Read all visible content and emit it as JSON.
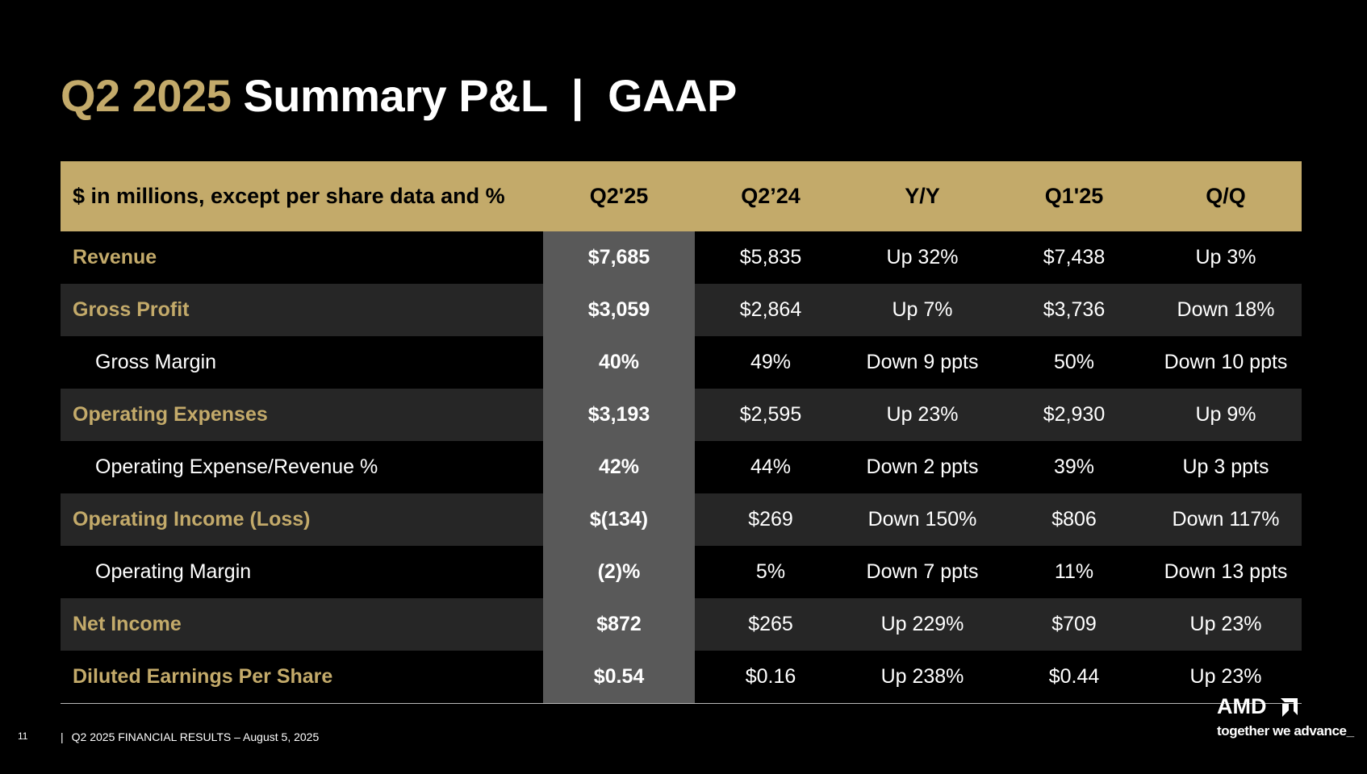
{
  "title": {
    "accent": "Q2 2025",
    "main": "Summary P&L  |  GAAP"
  },
  "colors": {
    "accent_gold": "#c3aa6a",
    "background": "#000000",
    "row_shade": "#262626",
    "current_column": "#595959"
  },
  "table": {
    "headers": [
      "$ in millions, except per share data and %",
      "Q2'25",
      "Q2’24",
      "Y/Y",
      "Q1'25",
      "Q/Q"
    ],
    "rows": [
      {
        "label": "Revenue",
        "style": "primary",
        "values": [
          "$7,685",
          "$5,835",
          "Up 32%",
          "$7,438",
          "Up 3%"
        ]
      },
      {
        "label": "Gross Profit",
        "style": "primary",
        "values": [
          "$3,059",
          "$2,864",
          "Up 7%",
          "$3,736",
          "Down 18%"
        ]
      },
      {
        "label": "Gross Margin",
        "style": "sub",
        "values": [
          "40%",
          "49%",
          "Down 9 ppts",
          "50%",
          "Down 10 ppts"
        ]
      },
      {
        "label": "Operating Expenses",
        "style": "primary",
        "values": [
          "$3,193",
          "$2,595",
          "Up 23%",
          "$2,930",
          "Up 9%"
        ]
      },
      {
        "label": "Operating Expense/Revenue %",
        "style": "sub",
        "values": [
          "42%",
          "44%",
          "Down 2 ppts",
          "39%",
          "Up 3 ppts"
        ]
      },
      {
        "label": "Operating Income (Loss)",
        "style": "primary",
        "values": [
          "$(134)",
          "$269",
          "Down 150%",
          "$806",
          "Down 117%"
        ]
      },
      {
        "label": "Operating Margin",
        "style": "sub",
        "values": [
          "(2)%",
          "5%",
          "Down 7 ppts",
          "11%",
          "Down 13 ppts"
        ]
      },
      {
        "label": "Net Income",
        "style": "primary",
        "values": [
          "$872",
          "$265",
          "Up 229%",
          "$709",
          "Up 23%"
        ]
      },
      {
        "label": "Diluted Earnings Per Share",
        "style": "primary",
        "values": [
          "$0.54",
          "$0.16",
          "Up 238%",
          "$0.44",
          "Up 23%"
        ]
      }
    ]
  },
  "footer": {
    "page_number": "11",
    "separator": "|",
    "text": "Q2 2025 FINANCIAL RESULTS – August 5, 2025"
  },
  "brand": {
    "wordmark": "AMD",
    "tagline": "together we advance_",
    "logo_icon": "amd-arrow-icon"
  }
}
